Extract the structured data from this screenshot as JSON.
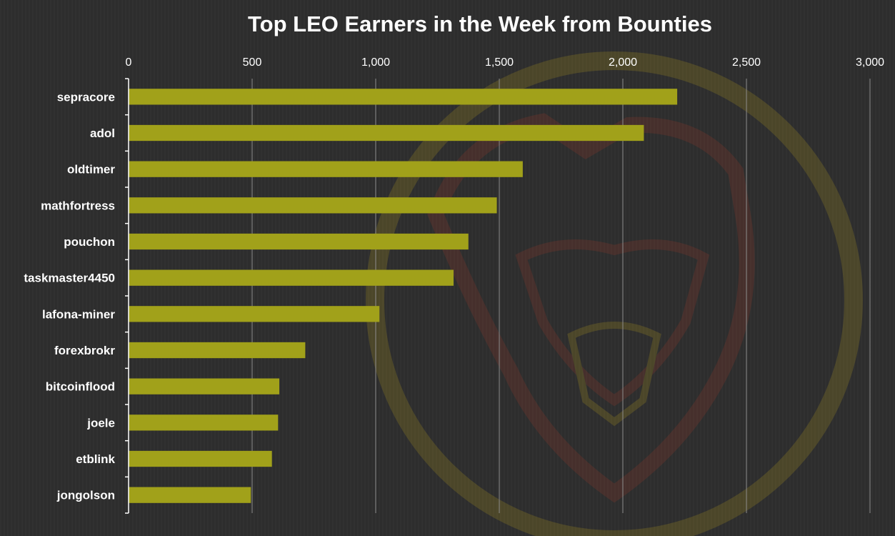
{
  "colors": {
    "bar": "#a1a11a",
    "background": "#2e2e2e",
    "watermark_ring": "#b8a01e",
    "watermark_face": "#a03a2a"
  },
  "chart_data": {
    "type": "bar",
    "orientation": "horizontal",
    "title": "Top LEO Earners in the Week from Bounties",
    "xlabel": "",
    "ylabel": "",
    "xlim": [
      0,
      3000
    ],
    "x_ticks": [
      0,
      500,
      1000,
      1500,
      2000,
      2500,
      3000
    ],
    "x_tick_labels": [
      "0",
      "500",
      "1,000",
      "1,500",
      "2,000",
      "2,500",
      "3,000"
    ],
    "x_axis_position": "top",
    "grid": true,
    "legend": "none",
    "categories": [
      "sepracore",
      "adol",
      "oldtimer",
      "mathfortress",
      "pouchon",
      "taskmaster4450",
      "lafona-miner",
      "forexbrokr",
      "bitcoinflood",
      "joele",
      "etblink",
      "jongolson"
    ],
    "values": [
      2220,
      2085,
      1595,
      1490,
      1375,
      1315,
      1015,
      715,
      610,
      605,
      580,
      495
    ]
  }
}
